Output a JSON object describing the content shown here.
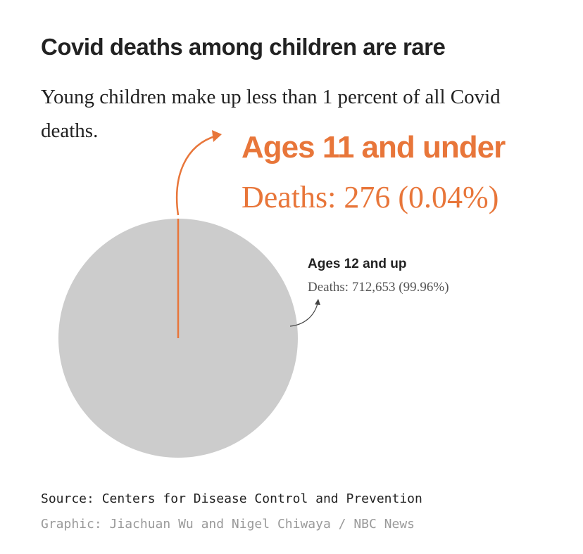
{
  "title": "Covid deaths among children are rare",
  "subtitle": "Young children make up less than 1 percent of all Covid deaths.",
  "source": "Source: Centers for Disease Control and Prevention",
  "credit": "Graphic: Jiachuan Wu and Nigel Chiwaya / NBC News",
  "colors": {
    "highlight": "#e8763a",
    "rest": "#cccccc",
    "text": "#222222",
    "muted": "#555555"
  },
  "chart_data": {
    "type": "pie",
    "slices": [
      {
        "label": "Ages 11 and under",
        "detail": "Deaths: 276 (0.04%)",
        "value": 276,
        "percent": 0.04,
        "color": "#e8763a"
      },
      {
        "label": "Ages 12 and up",
        "detail": "Deaths: 712,653 (99.96%)",
        "value": 712653,
        "percent": 99.96,
        "color": "#cccccc"
      }
    ]
  }
}
